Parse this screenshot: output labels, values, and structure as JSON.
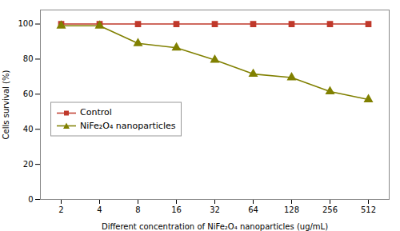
{
  "chart_data": {
    "type": "line",
    "categories": [
      "2",
      "4",
      "8",
      "16",
      "32",
      "64",
      "128",
      "256",
      "512"
    ],
    "series": [
      {
        "name": "Control",
        "color": "#c0392b",
        "marker": "square",
        "values": [
          100,
          100,
          100,
          100,
          100,
          100,
          100,
          100,
          100
        ]
      },
      {
        "name": "NiFe₂O₄ nanoparticles",
        "color": "#808000",
        "marker": "triangle",
        "values": [
          99,
          99,
          89,
          86.5,
          79.5,
          71.5,
          69.5,
          61.5,
          57
        ]
      }
    ],
    "xlabel": "Different concentration of NiFe₂O₄ nanoparticles (ug/mL)",
    "ylabel": "Cells survival (%)",
    "ylim": [
      0,
      108
    ],
    "yticks": [
      0,
      20,
      40,
      60,
      80,
      100
    ],
    "grid": false,
    "legend": "center left"
  }
}
